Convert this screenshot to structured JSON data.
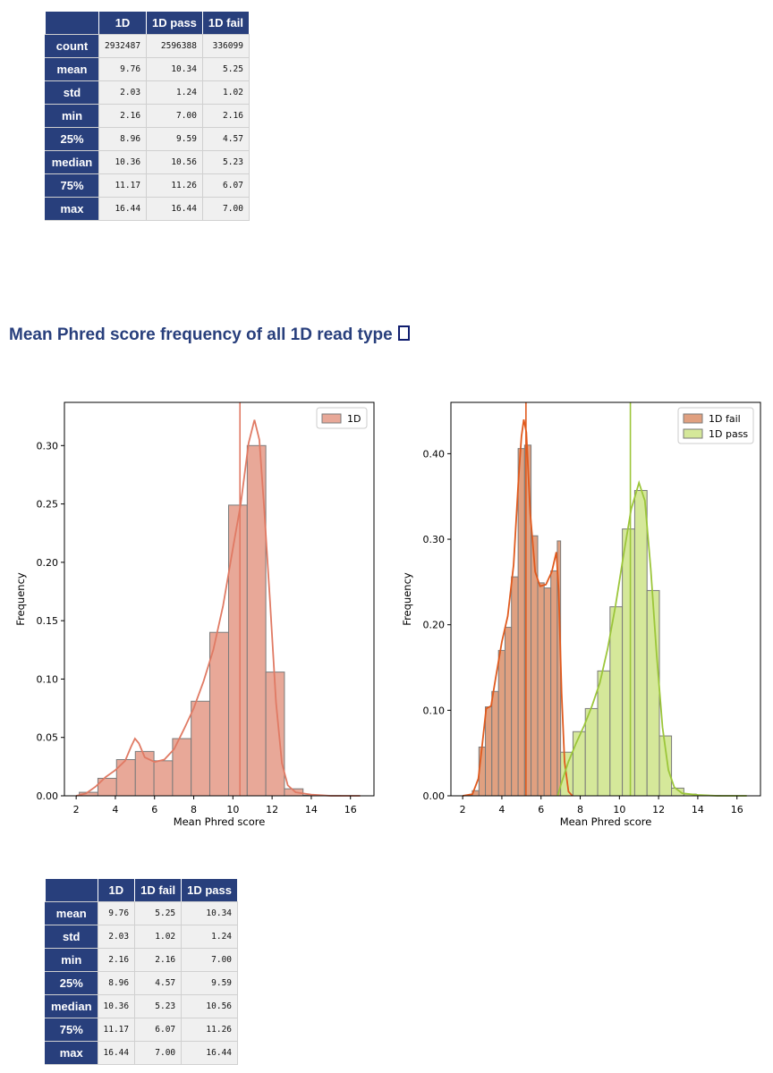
{
  "stats_table": {
    "columns": [
      "",
      "1D",
      "1D pass",
      "1D fail"
    ],
    "rows": [
      {
        "label": "count",
        "values": [
          "2932487",
          "2596388",
          "336099"
        ]
      },
      {
        "label": "mean",
        "values": [
          "9.76",
          "10.34",
          "5.25"
        ]
      },
      {
        "label": "std",
        "values": [
          "2.03",
          "1.24",
          "1.02"
        ]
      },
      {
        "label": "min",
        "values": [
          "2.16",
          "7.00",
          "2.16"
        ]
      },
      {
        "label": "25%",
        "values": [
          "8.96",
          "9.59",
          "4.57"
        ]
      },
      {
        "label": "median",
        "values": [
          "10.36",
          "10.56",
          "5.23"
        ]
      },
      {
        "label": "75%",
        "values": [
          "11.17",
          "11.26",
          "6.07"
        ]
      },
      {
        "label": "max",
        "values": [
          "16.44",
          "16.44",
          "7.00"
        ]
      }
    ]
  },
  "section": {
    "title": "Mean Phred score frequency of all 1D read type"
  },
  "summary_table": {
    "columns": [
      "",
      "1D",
      "1D fail",
      "1D pass"
    ],
    "rows": [
      {
        "label": "mean",
        "values": [
          "9.76",
          "5.25",
          "10.34"
        ]
      },
      {
        "label": "std",
        "values": [
          "2.03",
          "1.02",
          "1.24"
        ]
      },
      {
        "label": "min",
        "values": [
          "2.16",
          "2.16",
          "7.00"
        ]
      },
      {
        "label": "25%",
        "values": [
          "8.96",
          "4.57",
          "9.59"
        ]
      },
      {
        "label": "median",
        "values": [
          "10.36",
          "5.23",
          "10.56"
        ]
      },
      {
        "label": "75%",
        "values": [
          "11.17",
          "6.07",
          "11.26"
        ]
      },
      {
        "label": "max",
        "values": [
          "16.44",
          "7.00",
          "16.44"
        ]
      }
    ]
  },
  "chart_data": [
    {
      "type": "bar",
      "title": "",
      "xlabel": "Mean Phred score",
      "ylabel": "Frequency",
      "xlim": [
        1.4,
        17.2
      ],
      "ylim": [
        0,
        0.337
      ],
      "xticks": [
        2,
        4,
        6,
        8,
        10,
        12,
        14,
        16
      ],
      "yticks": [
        0.0,
        0.05,
        0.1,
        0.15,
        0.2,
        0.25,
        0.3
      ],
      "ytick_labels": [
        "0.00",
        "0.05",
        "0.10",
        "0.15",
        "0.20",
        "0.25",
        "0.30"
      ],
      "grid": false,
      "legend_position": "top-right",
      "series": [
        {
          "name": "1D",
          "color": "#e8a898",
          "line_color": "#e07a64",
          "bin_edges": [
            2.16,
            3.11,
            4.06,
            5.02,
            5.97,
            6.92,
            7.87,
            8.82,
            9.78,
            10.73,
            11.68,
            12.63,
            13.58,
            14.54,
            15.49,
            16.44
          ],
          "values": [
            0.003,
            0.015,
            0.031,
            0.038,
            0.03,
            0.049,
            0.081,
            0.14,
            0.249,
            0.3,
            0.106,
            0.006,
            0.0005,
            0.0002,
            0.0001
          ],
          "kde": [
            [
              2.0,
              0.0
            ],
            [
              2.5,
              0.002
            ],
            [
              3.0,
              0.008
            ],
            [
              3.5,
              0.016
            ],
            [
              4.0,
              0.022
            ],
            [
              4.5,
              0.03
            ],
            [
              4.8,
              0.042
            ],
            [
              5.0,
              0.049
            ],
            [
              5.2,
              0.045
            ],
            [
              5.5,
              0.033
            ],
            [
              6.0,
              0.029
            ],
            [
              6.5,
              0.031
            ],
            [
              7.0,
              0.04
            ],
            [
              7.5,
              0.057
            ],
            [
              8.0,
              0.075
            ],
            [
              8.5,
              0.098
            ],
            [
              9.0,
              0.125
            ],
            [
              9.5,
              0.163
            ],
            [
              10.0,
              0.212
            ],
            [
              10.4,
              0.25
            ],
            [
              10.8,
              0.302
            ],
            [
              11.1,
              0.322
            ],
            [
              11.35,
              0.305
            ],
            [
              11.6,
              0.245
            ],
            [
              11.9,
              0.165
            ],
            [
              12.2,
              0.08
            ],
            [
              12.5,
              0.028
            ],
            [
              12.8,
              0.009
            ],
            [
              13.2,
              0.003
            ],
            [
              14.0,
              0.001
            ],
            [
              15.0,
              0.0
            ],
            [
              16.5,
              0.0
            ]
          ],
          "vline": 10.36
        }
      ]
    },
    {
      "type": "bar",
      "title": "",
      "xlabel": "Mean Phred score",
      "ylabel": "Frequency",
      "xlim": [
        1.4,
        17.2
      ],
      "ylim": [
        0,
        0.46
      ],
      "xticks": [
        2,
        4,
        6,
        8,
        10,
        12,
        14,
        16
      ],
      "yticks": [
        0.0,
        0.1,
        0.2,
        0.3,
        0.4
      ],
      "ytick_labels": [
        "0.00",
        "0.10",
        "0.20",
        "0.30",
        "0.40"
      ],
      "grid": false,
      "legend_position": "top-right",
      "series": [
        {
          "name": "1D fail",
          "color": "#e0a080",
          "line_color": "#e05a1e",
          "bin_edges": [
            2.16,
            2.49,
            2.83,
            3.16,
            3.49,
            3.83,
            4.16,
            4.49,
            4.83,
            5.16,
            5.49,
            5.83,
            6.16,
            6.5,
            6.83,
            7.0
          ],
          "values": [
            0.001,
            0.006,
            0.057,
            0.104,
            0.122,
            0.17,
            0.197,
            0.256,
            0.406,
            0.41,
            0.304,
            0.249,
            0.243,
            0.263,
            0.298
          ],
          "kde": [
            [
              2.0,
              0.0
            ],
            [
              2.5,
              0.002
            ],
            [
              2.8,
              0.02
            ],
            [
              3.0,
              0.06
            ],
            [
              3.2,
              0.102
            ],
            [
              3.45,
              0.105
            ],
            [
              3.7,
              0.14
            ],
            [
              4.0,
              0.18
            ],
            [
              4.3,
              0.21
            ],
            [
              4.6,
              0.27
            ],
            [
              4.85,
              0.37
            ],
            [
              5.0,
              0.42
            ],
            [
              5.12,
              0.44
            ],
            [
              5.25,
              0.425
            ],
            [
              5.45,
              0.33
            ],
            [
              5.7,
              0.262
            ],
            [
              5.95,
              0.245
            ],
            [
              6.25,
              0.247
            ],
            [
              6.55,
              0.262
            ],
            [
              6.78,
              0.285
            ],
            [
              6.9,
              0.24
            ],
            [
              7.05,
              0.12
            ],
            [
              7.2,
              0.04
            ],
            [
              7.4,
              0.005
            ],
            [
              7.6,
              0.0
            ]
          ],
          "vline": 5.23
        },
        {
          "name": "1D pass",
          "color": "#d5e89a",
          "line_color": "#9cc63a",
          "bin_edges": [
            7.0,
            7.63,
            8.26,
            8.89,
            9.52,
            10.15,
            10.78,
            11.41,
            12.04,
            12.66,
            13.29,
            13.92,
            14.55,
            15.18,
            15.81,
            16.44
          ],
          "values": [
            0.051,
            0.075,
            0.102,
            0.146,
            0.221,
            0.312,
            0.357,
            0.24,
            0.07,
            0.009,
            0.002,
            0.0006,
            0.0003,
            0.0002,
            0.0001
          ],
          "kde": [
            [
              6.85,
              0.0
            ],
            [
              7.0,
              0.012
            ],
            [
              7.4,
              0.04
            ],
            [
              7.8,
              0.062
            ],
            [
              8.2,
              0.082
            ],
            [
              8.6,
              0.105
            ],
            [
              9.0,
              0.132
            ],
            [
              9.4,
              0.172
            ],
            [
              9.8,
              0.222
            ],
            [
              10.2,
              0.28
            ],
            [
              10.6,
              0.335
            ],
            [
              11.0,
              0.366
            ],
            [
              11.3,
              0.345
            ],
            [
              11.6,
              0.265
            ],
            [
              11.9,
              0.165
            ],
            [
              12.2,
              0.08
            ],
            [
              12.5,
              0.03
            ],
            [
              12.8,
              0.01
            ],
            [
              13.2,
              0.003
            ],
            [
              14.0,
              0.001
            ],
            [
              15.0,
              0.0
            ],
            [
              16.5,
              0.0
            ]
          ],
          "vline": 10.56
        }
      ]
    }
  ]
}
